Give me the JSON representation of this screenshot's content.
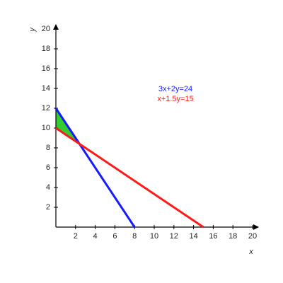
{
  "chart_data": {
    "type": "line",
    "xlabel": "x",
    "ylabel": "y",
    "xlim": [
      0,
      20
    ],
    "ylim": [
      0,
      20
    ],
    "xticks": [
      2,
      4,
      6,
      8,
      10,
      12,
      14,
      16,
      18,
      20
    ],
    "yticks": [
      2,
      4,
      6,
      8,
      10,
      12,
      14,
      16,
      18,
      20
    ],
    "series": [
      {
        "name": "3x+2y=24",
        "color": "#1a1aff",
        "x": [
          0,
          8
        ],
        "values": [
          12,
          0
        ]
      },
      {
        "name": "x+1.5y=15",
        "color": "#ff1a1a",
        "x": [
          0,
          15
        ],
        "values": [
          10,
          0
        ]
      }
    ],
    "region": {
      "color": "#33cc33",
      "x": [
        0,
        0,
        2.4
      ],
      "values": [
        10,
        12,
        8.4
      ]
    }
  }
}
